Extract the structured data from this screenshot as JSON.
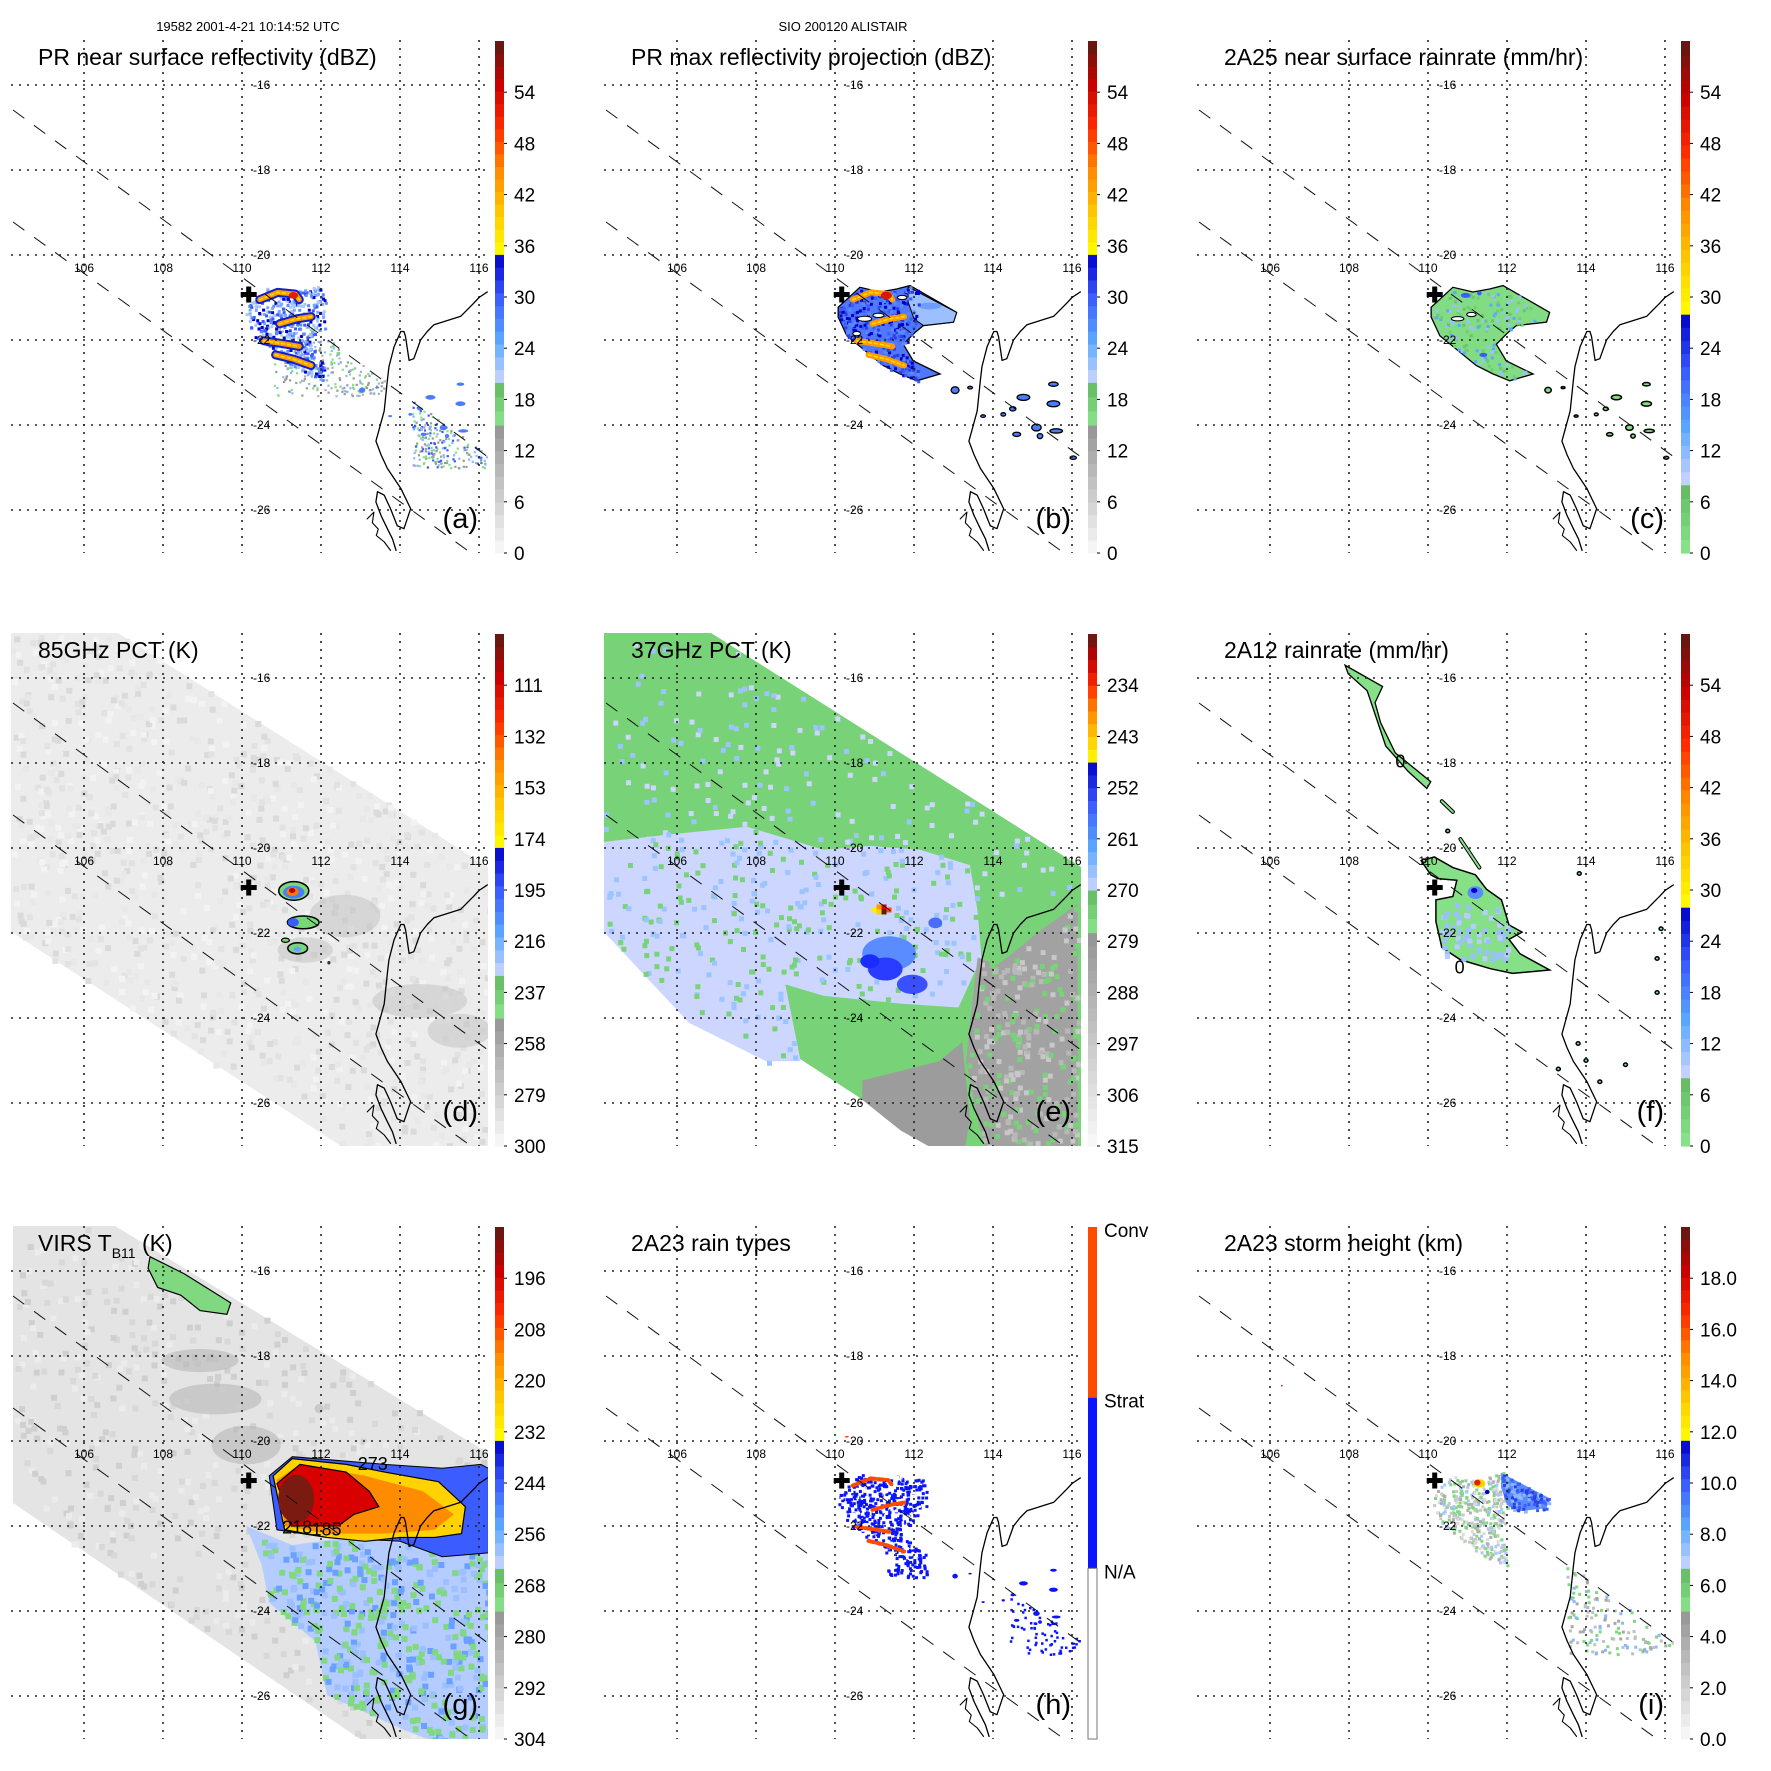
{
  "header": {
    "orbit_time": "19582 2001-4-21 10:14:52 UTC",
    "storm": "SIO 200120 ALISTAIR"
  },
  "map": {
    "lon_labels": [
      "106",
      "108",
      "110",
      "112",
      "114",
      "116"
    ],
    "lat_labels": [
      "-16",
      "-18",
      "-20",
      "-22",
      "-24",
      "-26"
    ],
    "lon_range": [
      104.1,
      116.2
    ],
    "lat_range": [
      -14.95,
      -26.95
    ],
    "storm_center": {
      "lon": 110.17,
      "lat": -20.93
    }
  },
  "palette": {
    "gray": [
      "#fafafa",
      "#949494"
    ],
    "green": [
      "#8ae68c",
      "#62b862"
    ],
    "blue": [
      "#cfd6ff",
      "#5aa8ff",
      "#3a5cff",
      "#0000c8"
    ],
    "warm": [
      "#ffff00",
      "#ffc800",
      "#ff8800",
      "#ff2a00",
      "#c80000",
      "#5a1a14"
    ],
    "conv": "#ff4a00",
    "strat": "#0a14ff"
  },
  "panels": [
    {
      "id": "a",
      "title": "PR near surface reflectivity (dBZ)",
      "label": "(a)",
      "colorbar": {
        "bottom": 0,
        "top": 60,
        "bounds": [
          0,
          15,
          20,
          35,
          60
        ],
        "ticks": [
          0,
          6,
          12,
          18,
          24,
          30,
          36,
          42,
          48,
          54
        ],
        "tick_labels": [
          "0",
          "6",
          "12",
          "18",
          "24",
          "30",
          "36",
          "42",
          "48",
          "54"
        ]
      }
    },
    {
      "id": "b",
      "title": "PR max reflectivity projection (dBZ)",
      "label": "(b)",
      "colorbar": {
        "bottom": 0,
        "top": 60,
        "bounds": [
          0,
          15,
          20,
          35,
          60
        ],
        "ticks": [
          0,
          6,
          12,
          18,
          24,
          30,
          36,
          42,
          48,
          54
        ],
        "tick_labels": [
          "0",
          "6",
          "12",
          "18",
          "24",
          "30",
          "36",
          "42",
          "48",
          "54"
        ]
      }
    },
    {
      "id": "c",
      "title": "2A25 near surface rainrate (mm/hr)",
      "label": "(c)",
      "colorbar": {
        "bottom": 0,
        "top": 60,
        "bounds": [
          0,
          0,
          8,
          28,
          60
        ],
        "ticks": [
          0,
          6,
          12,
          18,
          24,
          30,
          36,
          42,
          48,
          54
        ],
        "tick_labels": [
          "0",
          "6",
          "12",
          "18",
          "24",
          "30",
          "36",
          "42",
          "48",
          "54"
        ]
      }
    },
    {
      "id": "d",
      "title": "85GHz PCT (K)",
      "label": "(d)",
      "colorbar": {
        "bottom": 300,
        "top": 90,
        "bounds": [
          300,
          247.5,
          230,
          177.5,
          90
        ],
        "ticks": [
          300,
          279,
          258,
          237,
          216,
          195,
          174,
          153,
          132,
          111
        ],
        "tick_labels": [
          "300",
          "279",
          "258",
          "237",
          "216",
          "195",
          "174",
          "153",
          "132",
          "111"
        ]
      }
    },
    {
      "id": "e",
      "title": "37GHz PCT (K)",
      "label": "(e)",
      "colorbar": {
        "bottom": 315,
        "top": 225,
        "bounds": [
          315,
          277.5,
          270,
          247.5,
          225
        ],
        "ticks": [
          315,
          306,
          297,
          288,
          279,
          270,
          261,
          252,
          243,
          234
        ],
        "tick_labels": [
          "315",
          "306",
          "297",
          "288",
          "279",
          "270",
          "261",
          "252",
          "243",
          "234"
        ]
      }
    },
    {
      "id": "f",
      "title": "2A12 rainrate (mm/hr)",
      "label": "(f)",
      "contour_labels": [
        "0",
        "0"
      ],
      "colorbar": {
        "bottom": 0,
        "top": 60,
        "bounds": [
          0,
          0,
          8,
          28,
          60
        ],
        "ticks": [
          0,
          6,
          12,
          18,
          24,
          30,
          36,
          42,
          48,
          54
        ],
        "tick_labels": [
          "0",
          "6",
          "12",
          "18",
          "24",
          "30",
          "36",
          "42",
          "48",
          "54"
        ]
      }
    },
    {
      "id": "g",
      "title": "VIRS T",
      "title_sub": "B11",
      "title_end": " (K)",
      "label": "(g)",
      "contour_labels": [
        "273",
        "218",
        "185"
      ],
      "colorbar": {
        "bottom": 304,
        "top": 184,
        "bounds": [
          304,
          274,
          264,
          234,
          184
        ],
        "ticks": [
          304,
          292,
          280,
          268,
          256,
          244,
          232,
          220,
          208,
          196
        ],
        "tick_labels": [
          "304",
          "292",
          "280",
          "268",
          "256",
          "244",
          "232",
          "220",
          "208",
          "196"
        ]
      }
    },
    {
      "id": "h",
      "title": "2A23 rain types",
      "label": "(h)",
      "categories": [
        {
          "label": "Conv",
          "color": "#ff4a00"
        },
        {
          "label": "Strat",
          "color": "#0a14ff"
        },
        {
          "label": "N/A",
          "color": "#ffffff"
        }
      ]
    },
    {
      "id": "i",
      "title": "2A23 storm height (km)",
      "label": "(i)",
      "colorbar": {
        "bottom": 0,
        "top": 20,
        "bounds": [
          0,
          5,
          6.67,
          11.67,
          20
        ],
        "ticks": [
          0,
          2,
          4,
          6,
          8,
          10,
          12,
          14,
          16,
          18
        ],
        "tick_labels": [
          "0.0",
          "2.0",
          "4.0",
          "6.0",
          "8.0",
          "10.0",
          "12.0",
          "14.0",
          "16.0",
          "18.0"
        ]
      }
    }
  ]
}
